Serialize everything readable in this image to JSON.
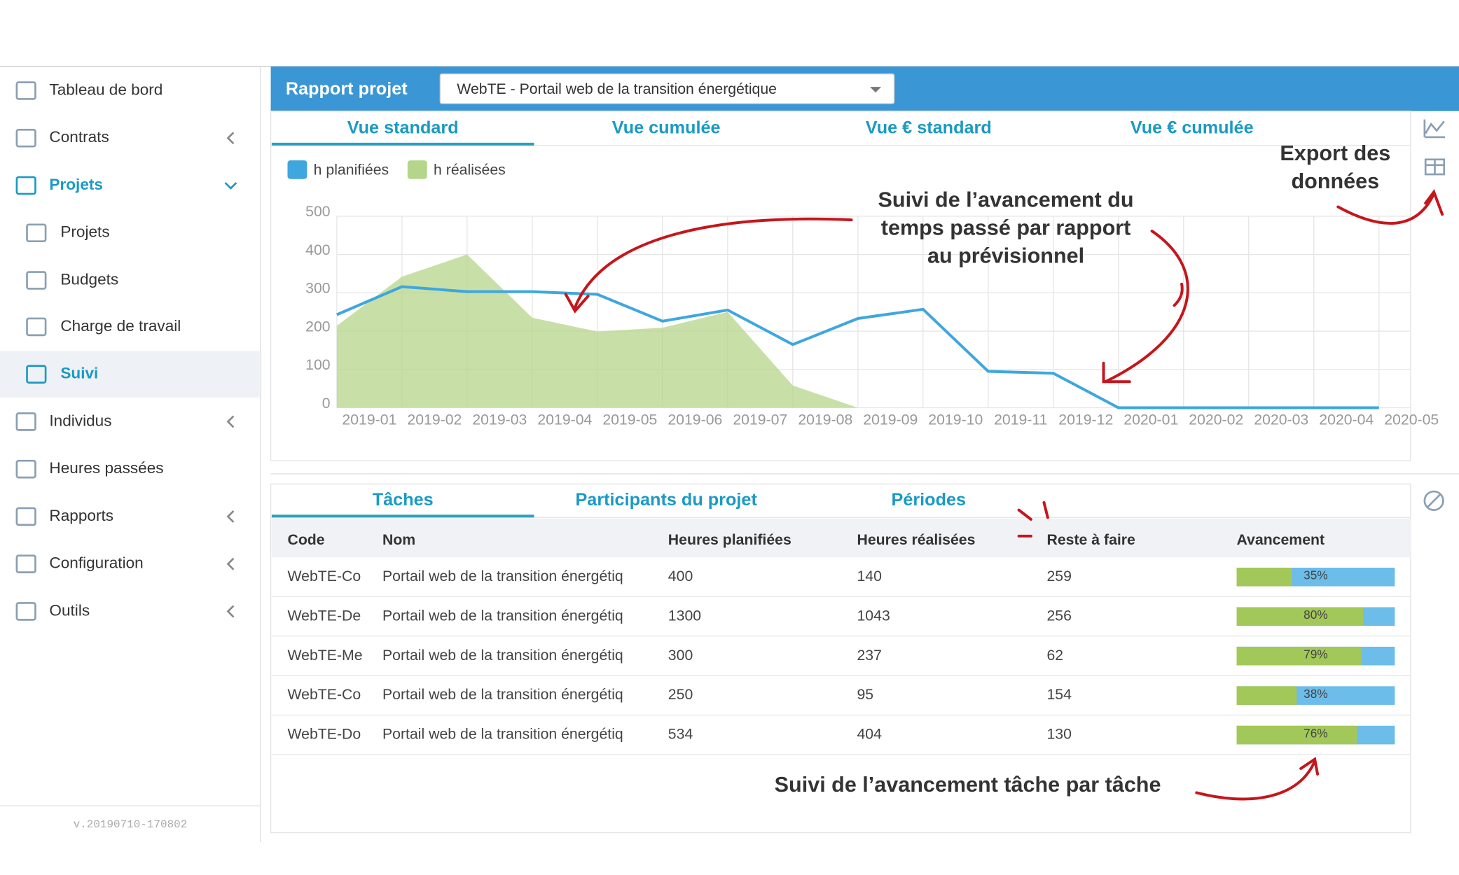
{
  "sidebar": {
    "items": [
      {
        "label": "Tableau de bord"
      },
      {
        "label": "Contrats"
      },
      {
        "label": "Projets"
      },
      {
        "label": "Projets"
      },
      {
        "label": "Budgets"
      },
      {
        "label": "Charge de travail"
      },
      {
        "label": "Suivi"
      },
      {
        "label": "Individus"
      },
      {
        "label": "Heures passées"
      },
      {
        "label": "Rapports"
      },
      {
        "label": "Configuration"
      },
      {
        "label": "Outils"
      }
    ],
    "version": "v.20190710-170802"
  },
  "header": {
    "title": "Rapport projet",
    "project": "WebTE - Portail web de la transition énergétique"
  },
  "chart_tabs": [
    "Vue standard",
    "Vue cumulée",
    "Vue € standard",
    "Vue € cumulée"
  ],
  "chart_data": {
    "type": "line",
    "categories": [
      "2019-01",
      "2019-02",
      "2019-03",
      "2019-04",
      "2019-05",
      "2019-06",
      "2019-07",
      "2019-08",
      "2019-09",
      "2019-10",
      "2019-11",
      "2019-12",
      "2020-01",
      "2020-02",
      "2020-03",
      "2020-04",
      "2020-05"
    ],
    "series": [
      {
        "name": "h planifiées",
        "color": "#3fa6de",
        "kind": "line",
        "values": [
          243,
          316,
          303,
          303,
          296,
          226,
          255,
          165,
          233,
          257,
          95,
          90,
          0,
          0,
          0,
          0,
          0
        ]
      },
      {
        "name": "h réalisées",
        "color": "#b5d68a",
        "kind": "area",
        "values": [
          214,
          342,
          400,
          235,
          199,
          209,
          250,
          58,
          0,
          null,
          null,
          null,
          null,
          null,
          null,
          null,
          null
        ]
      }
    ],
    "ylim": [
      0,
      500
    ],
    "yticks": [
      0,
      100,
      200,
      300,
      400,
      500
    ],
    "grid": true
  },
  "table_tabs": [
    "Tâches",
    "Participants du projet",
    "Périodes"
  ],
  "table": {
    "columns": [
      "Code",
      "Nom",
      "Heures planifiées",
      "Heures réalisées",
      "Reste à faire",
      "Avancement"
    ],
    "rows": [
      {
        "code": "WebTE-Co",
        "name": "Portail web de la transition énergétiq",
        "planned": 400,
        "done": 140,
        "remaining": 259,
        "progress": 35,
        "progress_label": "35%"
      },
      {
        "code": "WebTE-De",
        "name": "Portail web de la transition énergétiq",
        "planned": 1300,
        "done": 1043,
        "remaining": 256,
        "progress": 80,
        "progress_label": "80%"
      },
      {
        "code": "WebTE-Me",
        "name": "Portail web de la transition énergétiq",
        "planned": 300,
        "done": 237,
        "remaining": 62,
        "progress": 79,
        "progress_label": "79%"
      },
      {
        "code": "WebTE-Co",
        "name": "Portail web de la transition énergétiq",
        "planned": 250,
        "done": 95,
        "remaining": 154,
        "progress": 38,
        "progress_label": "38%"
      },
      {
        "code": "WebTE-Do",
        "name": "Portail web de la transition énergétiq",
        "planned": 534,
        "done": 404,
        "remaining": 130,
        "progress": 76,
        "progress_label": "76%"
      }
    ]
  },
  "annotations": {
    "chart_note": [
      "Suivi de l’avancement du",
      "temps passé par rapport",
      "au prévisionnel"
    ],
    "export_note": [
      "Export des",
      "données"
    ],
    "table_note": "Suivi de l’avancement tâche par tâche"
  }
}
